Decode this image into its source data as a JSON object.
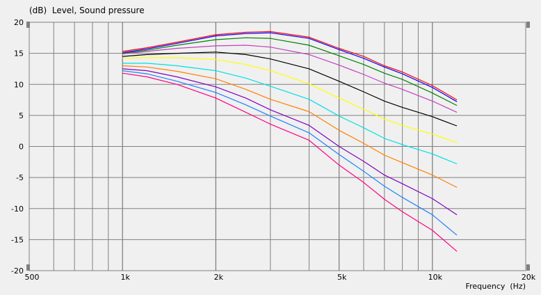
{
  "chart_data": {
    "type": "line",
    "title": "(dB)  Level, Sound pressure",
    "xlabel": "Frequency  (Hz)",
    "ylabel": "(dB)",
    "x_scale": "log",
    "xlim": [
      500,
      20000
    ],
    "ylim": [
      -20,
      20
    ],
    "x_ticks": [
      {
        "value": 500,
        "label": "500"
      },
      {
        "value": 1000,
        "label": "1k"
      },
      {
        "value": 2000,
        "label": "2k"
      },
      {
        "value": 5000,
        "label": "5k"
      },
      {
        "value": 10000,
        "label": "10k"
      },
      {
        "value": 20000,
        "label": "20k"
      }
    ],
    "y_ticks": [
      {
        "value": 20,
        "label": "20"
      },
      {
        "value": 15,
        "label": "15"
      },
      {
        "value": 10,
        "label": "10"
      },
      {
        "value": 5,
        "label": "5"
      },
      {
        "value": 0,
        "label": "0"
      },
      {
        "value": -5,
        "label": "-5"
      },
      {
        "value": -10,
        "label": "-10"
      },
      {
        "value": -15,
        "label": "-15"
      },
      {
        "value": -20,
        "label": "-20"
      }
    ],
    "grid": true,
    "x": [
      1000,
      1200,
      1500,
      2000,
      2500,
      3000,
      4000,
      5000,
      6000,
      7000,
      8000,
      10000,
      12000
    ],
    "series": [
      {
        "color": "#ff0000",
        "values": [
          15.3,
          15.9,
          16.8,
          18.0,
          18.4,
          18.5,
          17.6,
          15.8,
          14.5,
          13.0,
          12.0,
          9.8,
          7.5
        ]
      },
      {
        "color": "#0000ff",
        "values": [
          15.1,
          15.7,
          16.6,
          17.8,
          18.2,
          18.3,
          17.4,
          15.6,
          14.2,
          12.8,
          11.7,
          9.5,
          7.2
        ]
      },
      {
        "color": "#008000",
        "values": [
          15.0,
          15.5,
          16.3,
          17.2,
          17.5,
          17.4,
          16.3,
          14.6,
          13.2,
          11.8,
          10.8,
          8.6,
          6.6
        ]
      },
      {
        "color": "#c040c0",
        "values": [
          14.9,
          15.3,
          15.8,
          16.2,
          16.3,
          16.0,
          14.8,
          13.1,
          11.6,
          10.2,
          9.2,
          7.3,
          5.5
        ]
      },
      {
        "color": "#000000",
        "values": [
          14.5,
          14.8,
          15.0,
          15.2,
          14.8,
          14.1,
          12.5,
          10.5,
          8.8,
          7.3,
          6.3,
          4.8,
          3.3
        ]
      },
      {
        "color": "#ffff00",
        "values": [
          14.2,
          14.3,
          14.3,
          14.0,
          13.2,
          12.2,
          10.1,
          7.8,
          6.0,
          4.4,
          3.4,
          2.0,
          0.6
        ]
      },
      {
        "color": "#00e0e0",
        "values": [
          13.4,
          13.4,
          13.0,
          12.2,
          11.0,
          9.7,
          7.6,
          4.9,
          3.0,
          1.3,
          0.3,
          -1.2,
          -2.8
        ]
      },
      {
        "color": "#ff8000",
        "values": [
          13.0,
          12.8,
          12.1,
          10.9,
          9.2,
          7.6,
          5.6,
          2.6,
          0.5,
          -1.4,
          -2.6,
          -4.6,
          -6.6
        ]
      },
      {
        "color": "#8000c0",
        "values": [
          12.5,
          12.2,
          11.2,
          9.6,
          7.8,
          5.9,
          3.4,
          0.0,
          -2.4,
          -4.6,
          -6.0,
          -8.4,
          -11.0
        ]
      },
      {
        "color": "#2080ff",
        "values": [
          12.2,
          11.7,
          10.5,
          8.7,
          6.7,
          4.9,
          2.2,
          -1.3,
          -4.0,
          -6.4,
          -8.2,
          -11.0,
          -14.3
        ]
      },
      {
        "color": "#ff0080",
        "values": [
          11.8,
          11.2,
          10.0,
          7.8,
          5.5,
          3.6,
          1.0,
          -3.0,
          -5.8,
          -8.5,
          -10.5,
          -13.5,
          -16.9
        ]
      }
    ]
  }
}
